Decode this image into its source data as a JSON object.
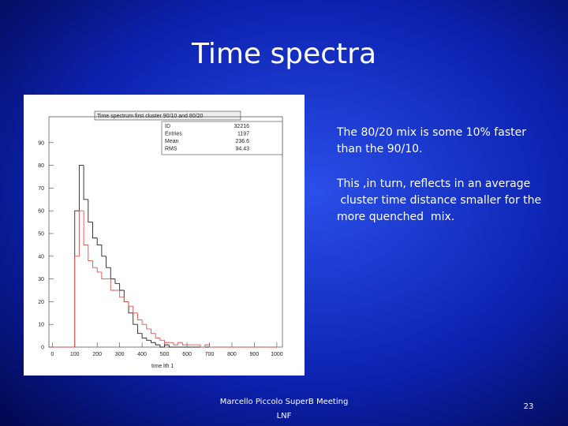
{
  "slide": {
    "title": "Time spectra",
    "text_lines": [
      "The 80/20 mix is some 10% faster",
      "than the 90/10.",
      "This ,in turn, reflects in an average",
      " cluster time distance smaller for the",
      "more quenched  mix."
    ],
    "footer": [
      "Marcello Piccolo SuperB Meeting",
      "LNF"
    ],
    "page_number": 23
  },
  "chart_data": {
    "type": "histogram",
    "title": "Time spectrum first cluster 90/10 and 80/20",
    "x_label": "time lth 1",
    "stats": {
      "labels": [
        "ID",
        "Entries",
        "Mean",
        "RMS"
      ],
      "values": [
        32216,
        1197,
        236.6,
        94.43
      ]
    },
    "bins": [
      0,
      20,
      40,
      60,
      80,
      100,
      120,
      140,
      160,
      180,
      200,
      220,
      240,
      260,
      280,
      300,
      320,
      340,
      360,
      380,
      400,
      420,
      440,
      460,
      480,
      500,
      520,
      540,
      560,
      580,
      600,
      620,
      640,
      660,
      680,
      700,
      720,
      740,
      760,
      780,
      800,
      820,
      840,
      860,
      880,
      900,
      920,
      940,
      960,
      980,
      1000
    ],
    "series": [
      {
        "color": "#222222",
        "values": [
          0,
          0,
          0,
          0,
          0,
          60,
          80,
          65,
          55,
          48,
          45,
          40,
          35,
          30,
          28,
          25,
          20,
          15,
          10,
          6,
          4,
          3,
          2,
          1,
          0,
          1,
          0,
          0,
          0,
          0,
          0,
          0,
          0,
          0,
          0,
          0,
          0,
          0,
          0,
          0,
          0,
          0,
          0,
          0,
          0,
          0,
          0,
          0,
          0,
          0
        ]
      },
      {
        "color": "#e0504a",
        "values": [
          0,
          0,
          0,
          0,
          0,
          40,
          60,
          45,
          38,
          35,
          33,
          30,
          30,
          25,
          25,
          22,
          20,
          18,
          15,
          12,
          10,
          8,
          6,
          4,
          3,
          2,
          2,
          1,
          2,
          1,
          1,
          1,
          1,
          0,
          1,
          0,
          0,
          0,
          0,
          0,
          0,
          0,
          0,
          0,
          0,
          0,
          0,
          0,
          0,
          0
        ]
      }
    ],
    "xlim": [
      -15,
      1025
    ],
    "ylim": [
      0,
      100
    ],
    "xticks": [
      0,
      100,
      200,
      300,
      400,
      500,
      600,
      700,
      800,
      900,
      1000
    ],
    "yticks": [
      0,
      10,
      20,
      30,
      40,
      50,
      60,
      70,
      80,
      90
    ]
  }
}
